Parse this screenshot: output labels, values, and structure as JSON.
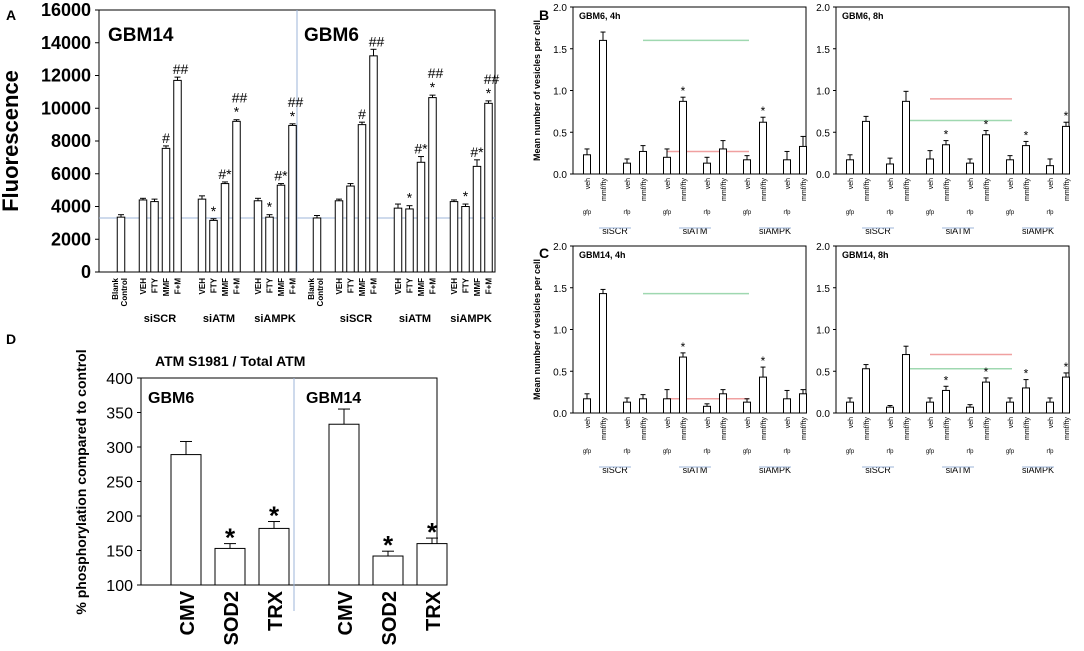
{
  "chart_data": [
    {
      "panel": "A",
      "type": "bar",
      "ylabel": "Fluorescence",
      "ylim": [
        0,
        16000
      ],
      "yticks": [
        0,
        2000,
        4000,
        6000,
        8000,
        10000,
        12000,
        14000,
        16000
      ],
      "cells": [
        "GBM14",
        "GBM6"
      ],
      "categories": [
        "Blank\nControl",
        "VEH",
        "FTY",
        "MMF",
        "F+M"
      ],
      "groups": [
        "siSCR",
        "siATM",
        "siAMPK"
      ],
      "series": [
        {
          "name": "GBM14",
          "blank": {
            "value": 3350,
            "err": 150
          },
          "values": [
            [
              4400,
              4300,
              7550,
              11700
            ],
            [
              4450,
              3150,
              5400,
              9200
            ],
            [
              4350,
              3350,
              5300,
              8950
            ]
          ],
          "errors": [
            [
              100,
              150,
              150,
              200
            ],
            [
              200,
              100,
              100,
              100
            ],
            [
              150,
              150,
              100,
              100
            ]
          ],
          "annotations": [
            [
              "",
              "",
              "#",
              "##"
            ],
            [
              "",
              "*",
              "#*",
              "*\n##"
            ],
            [
              "",
              "*",
              "#*",
              "*\n##"
            ]
          ]
        },
        {
          "name": "GBM6",
          "blank": {
            "value": 3300,
            "err": 150
          },
          "values": [
            [
              4350,
              5250,
              9000,
              13200
            ],
            [
              3900,
              3850,
              6700,
              10650
            ],
            [
              4300,
              4000,
              6450,
              10300
            ]
          ],
          "errors": [
            [
              100,
              150,
              150,
              400
            ],
            [
              250,
              200,
              350,
              150
            ],
            [
              100,
              150,
              400,
              150
            ]
          ],
          "annotations": [
            [
              "",
              "",
              "#",
              "##"
            ],
            [
              "",
              "*",
              "#*",
              "*\n##"
            ],
            [
              "",
              "*",
              "#*",
              "*\n##"
            ]
          ]
        }
      ],
      "reference_line": 3300
    },
    {
      "panel": "B",
      "type": "bar",
      "ylabel": "Mean number of vesicles per cell",
      "ylim": [
        0,
        2.0
      ],
      "yticks": [
        0.0,
        0.5,
        1.0,
        1.5,
        2.0
      ],
      "bar_labels": [
        "veh",
        "mmf/fty"
      ],
      "sub_labels": [
        "gfp",
        "rfp"
      ],
      "groups": [
        "siSCR",
        "siATM",
        "siAMPK"
      ],
      "plots": [
        {
          "title": "GBM6, 4h",
          "values": [
            0.23,
            1.6,
            0.13,
            0.27,
            0.2,
            0.87,
            0.13,
            0.3,
            0.17,
            0.62,
            0.17,
            0.33
          ],
          "errors": [
            0.07,
            0.1,
            0.05,
            0.07,
            0.1,
            0.05,
            0.07,
            0.1,
            0.05,
            0.06,
            0.1,
            0.12
          ],
          "stars": [
            5,
            9
          ],
          "green_line": 1.6,
          "red_line": 0.27
        },
        {
          "title": "GBM6, 8h",
          "values": [
            0.17,
            0.63,
            0.12,
            0.87,
            0.18,
            0.35,
            0.13,
            0.47,
            0.17,
            0.34,
            0.1,
            0.57
          ],
          "errors": [
            0.06,
            0.06,
            0.07,
            0.12,
            0.1,
            0.05,
            0.05,
            0.05,
            0.05,
            0.05,
            0.08,
            0.05
          ],
          "stars": [
            5,
            7,
            9,
            11
          ],
          "green_line": 0.64,
          "red_line": 0.9
        }
      ]
    },
    {
      "panel": "C",
      "type": "bar",
      "ylabel": "Mean number of vesicles per cell",
      "ylim": [
        0,
        2.0
      ],
      "yticks": [
        0.0,
        0.5,
        1.0,
        1.5,
        2.0
      ],
      "bar_labels": [
        "veh",
        "mmf/fty"
      ],
      "sub_labels": [
        "gfp",
        "rfp"
      ],
      "groups": [
        "siSCR",
        "siATM",
        "siAMPK"
      ],
      "plots": [
        {
          "title": "GBM14, 4h",
          "values": [
            0.17,
            1.43,
            0.13,
            0.17,
            0.17,
            0.67,
            0.08,
            0.23,
            0.13,
            0.43,
            0.17,
            0.23
          ],
          "errors": [
            0.06,
            0.05,
            0.05,
            0.05,
            0.11,
            0.05,
            0.03,
            0.05,
            0.04,
            0.12,
            0.1,
            0.05
          ],
          "stars": [
            5,
            9
          ],
          "green_line": 1.43,
          "red_line": 0.17
        },
        {
          "title": "GBM14, 8h",
          "values": [
            0.13,
            0.53,
            0.07,
            0.7,
            0.13,
            0.27,
            0.07,
            0.37,
            0.13,
            0.3,
            0.13,
            0.43
          ],
          "errors": [
            0.05,
            0.05,
            0.02,
            0.1,
            0.05,
            0.05,
            0.03,
            0.05,
            0.05,
            0.1,
            0.05,
            0.05
          ],
          "stars": [
            5,
            7,
            9,
            11
          ],
          "green_line": 0.53,
          "red_line": 0.7
        }
      ]
    },
    {
      "panel": "D",
      "type": "bar",
      "title": "ATM S1981 / Total ATM",
      "ylabel": "% phosphorylation compared to control",
      "ylim": [
        100,
        400
      ],
      "yticks": [
        100,
        150,
        200,
        250,
        300,
        350,
        400
      ],
      "groups": [
        {
          "name": "GBM6",
          "categories": [
            "CMV",
            "SOD2",
            "TRX"
          ],
          "values": [
            289,
            153,
            182
          ],
          "errors": [
            19,
            7,
            10
          ],
          "stars": [
            false,
            true,
            true
          ]
        },
        {
          "name": "GBM14",
          "categories": [
            "CMV",
            "SOD2",
            "TRX"
          ],
          "values": [
            333,
            142,
            160
          ],
          "errors": [
            22,
            7,
            8
          ],
          "stars": [
            false,
            true,
            true
          ]
        }
      ]
    }
  ],
  "panel_letters": [
    "A",
    "B",
    "C",
    "D"
  ],
  "symbols": {
    "star": "*",
    "hash": "#",
    "double_hash": "##",
    "hash_star": "#*"
  },
  "colors": {
    "axis": "#000000",
    "bar_fill": "#ffffff",
    "divider": "#9db4d8",
    "ref_line": "#9db4d8",
    "green_line": "#9fd8b0",
    "red_line": "#f0a0a0"
  }
}
